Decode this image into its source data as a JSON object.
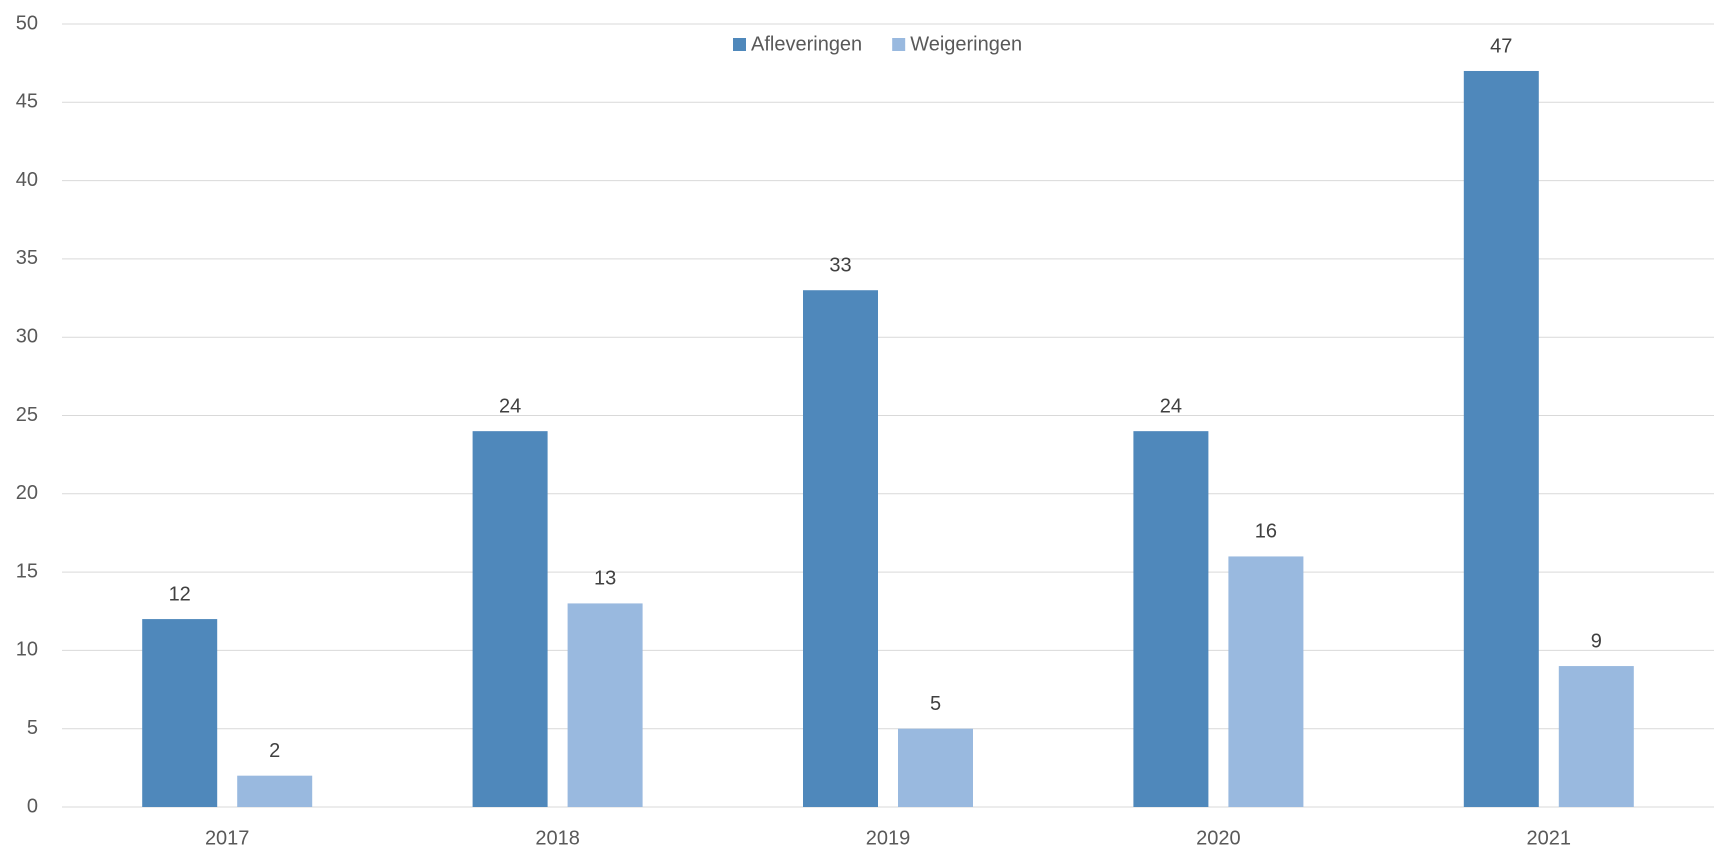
{
  "chart_data": {
    "type": "bar",
    "categories": [
      "2017",
      "2018",
      "2019",
      "2020",
      "2021"
    ],
    "series": [
      {
        "name": "Afleveringen",
        "color": "#4f88bb",
        "values": [
          12,
          24,
          33,
          24,
          47
        ]
      },
      {
        "name": "Weigeringen",
        "color": "#99b9df",
        "values": [
          2,
          13,
          5,
          16,
          9
        ]
      }
    ],
    "ylim": [
      0,
      50
    ],
    "yticks": [
      0,
      5,
      10,
      15,
      20,
      25,
      30,
      35,
      40,
      45,
      50
    ],
    "grid": true,
    "legend": "top"
  }
}
